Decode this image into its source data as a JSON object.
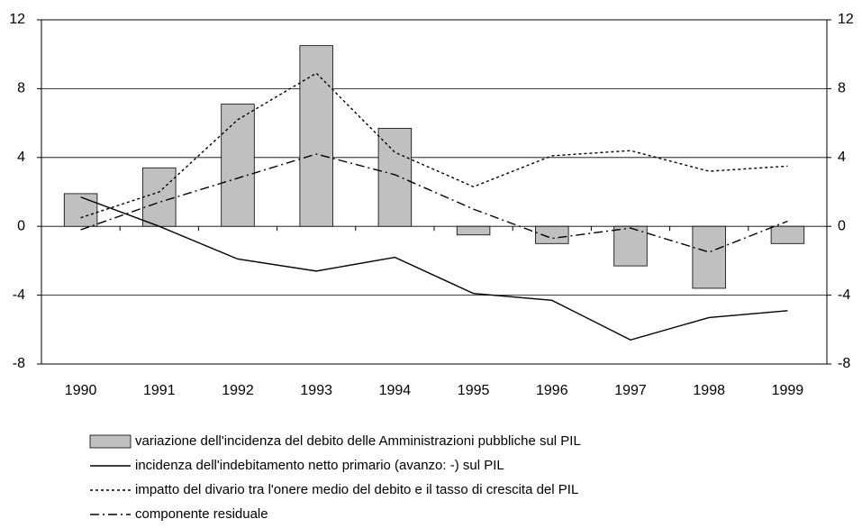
{
  "chart_data": {
    "type": "bar",
    "categories": [
      "1990",
      "1991",
      "1992",
      "1993",
      "1994",
      "1995",
      "1996",
      "1997",
      "1998",
      "1999"
    ],
    "series": [
      {
        "name": "variazione dell'incidenza del debito delle Amministrazioni pubbliche sul PIL",
        "type": "bar",
        "color": "#c0c0c0",
        "values": [
          1.9,
          3.4,
          7.1,
          10.5,
          5.7,
          -0.5,
          -1.0,
          -2.3,
          -3.6,
          -1.0
        ]
      },
      {
        "name": "incidenza dell'indebitamento netto primario (avanzo: -) sul PIL",
        "type": "line",
        "style": "solid",
        "color": "#000000",
        "values": [
          1.7,
          0.0,
          -1.9,
          -2.6,
          -1.8,
          -3.9,
          -4.3,
          -6.6,
          -5.3,
          -4.9
        ]
      },
      {
        "name": "impatto del divario tra l'onere medio del debito e il tasso di crescita del PIL",
        "type": "line",
        "style": "dotted",
        "color": "#000000",
        "values": [
          0.5,
          2.0,
          6.2,
          8.9,
          4.3,
          2.3,
          4.1,
          4.4,
          3.2,
          3.5
        ]
      },
      {
        "name": "componente residuale",
        "type": "line",
        "style": "dashdot",
        "color": "#000000",
        "values": [
          -0.2,
          1.4,
          2.8,
          4.2,
          3.0,
          1.0,
          -0.7,
          -0.1,
          -1.5,
          0.3
        ]
      }
    ],
    "ylim": [
      -8,
      12
    ],
    "yticks": [
      -8,
      -4,
      0,
      4,
      8,
      12
    ],
    "y2lim": [
      -8,
      12
    ],
    "y2ticks": [
      -8,
      -4,
      0,
      4,
      8,
      12
    ],
    "grid": true,
    "legend": "bottom"
  }
}
